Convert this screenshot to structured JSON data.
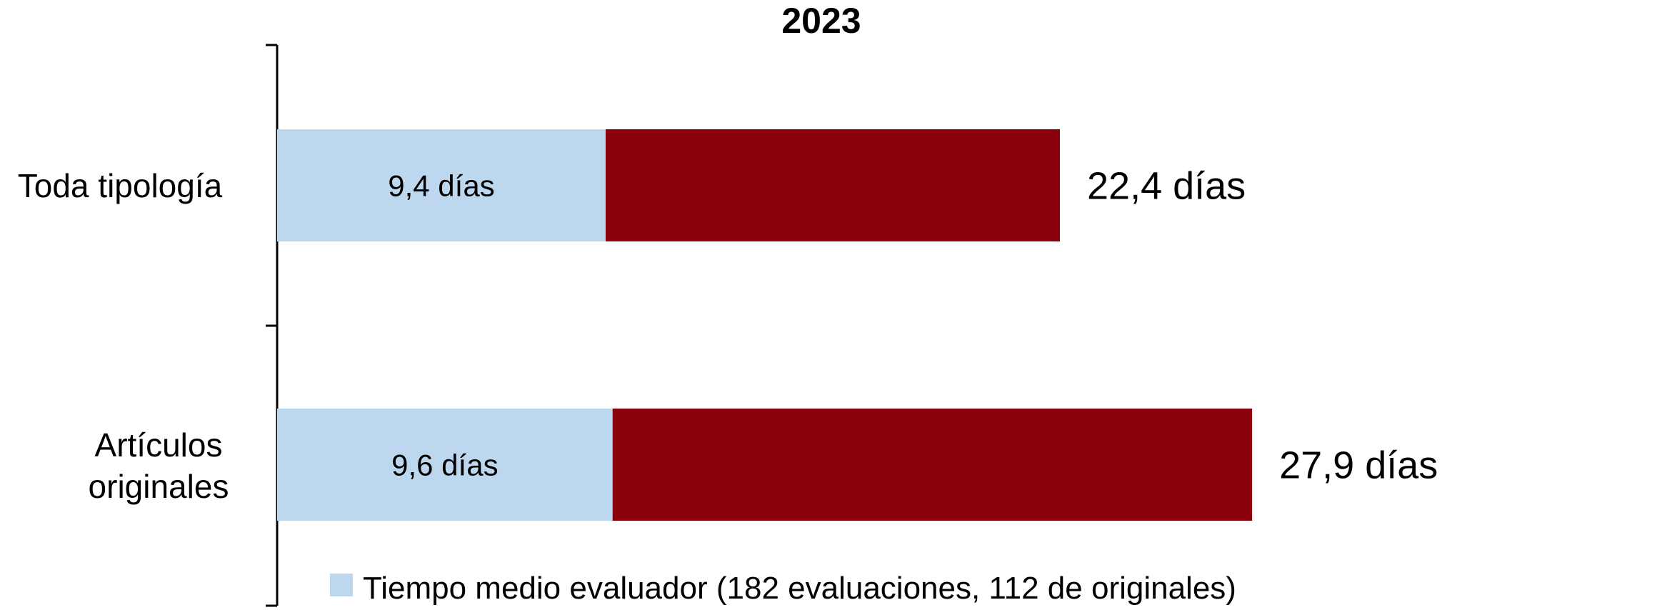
{
  "chart_data": {
    "type": "bar",
    "orientation": "horizontal",
    "stacked": true,
    "title": "2023",
    "categories": [
      [
        "Toda tipología"
      ],
      [
        "Artículos",
        "originales"
      ]
    ],
    "series": [
      {
        "name": "Tiempo medio evaluador (182 evaluaciones, 112 de originales)",
        "color": "#bdd7ee",
        "values": [
          9.4,
          9.6
        ],
        "labels": [
          "9,4 días",
          "9,6 días"
        ]
      },
      {
        "color": "#8b000d",
        "values": [
          13.0,
          18.3
        ]
      }
    ],
    "totals": [
      22.4,
      27.9
    ],
    "total_labels": [
      "22,4 días",
      "27,9 días"
    ],
    "xlim": [
      0,
      28
    ],
    "grid": false,
    "legend": "bottom"
  }
}
